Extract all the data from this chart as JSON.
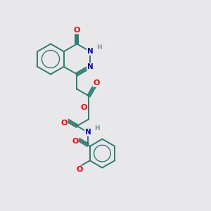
{
  "bg_color": "#e8e8eb",
  "bond_color": "#2d7d6e",
  "atom_colors": {
    "O": "#ff0000",
    "N": "#0000cc",
    "H": "#7a9a9a",
    "C": "#2d7d6e"
  },
  "figsize": [
    3.0,
    3.0
  ],
  "dpi": 100
}
